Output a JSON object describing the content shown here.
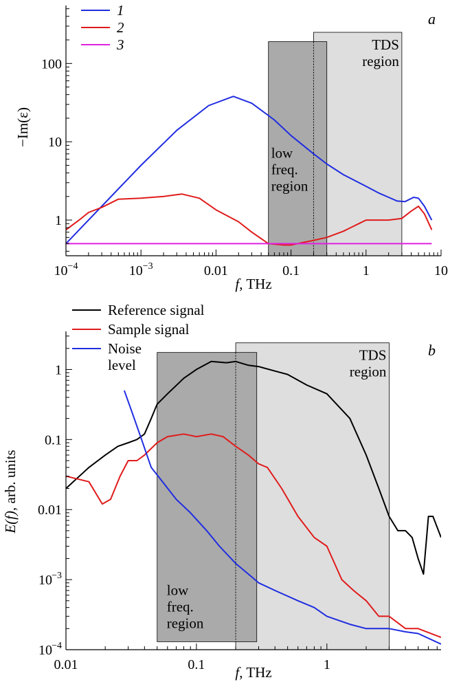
{
  "chart_data": [
    {
      "panel": "a",
      "type": "line",
      "xscale": "log",
      "yscale": "log",
      "xlim": [
        0.0001,
        10
      ],
      "ylim": [
        0.35,
        550
      ],
      "xlabel_italic": "f",
      "xlabel_rest": ", THz",
      "ylabel": "−Im(ε)",
      "panel_label": "a",
      "x_ticks": [
        {
          "v": 0.0001,
          "b": "10",
          "e": "−4"
        },
        {
          "v": 0.001,
          "b": "10",
          "e": "−3"
        },
        {
          "v": 0.01,
          "b": "0.01",
          "e": ""
        },
        {
          "v": 0.1,
          "b": "0.1",
          "e": ""
        },
        {
          "v": 1,
          "b": "1",
          "e": ""
        },
        {
          "v": 10,
          "b": "10",
          "e": ""
        }
      ],
      "y_ticks": [
        {
          "v": 1,
          "b": "1",
          "e": ""
        },
        {
          "v": 10,
          "b": "10",
          "e": ""
        },
        {
          "v": 100,
          "b": "100",
          "e": ""
        }
      ],
      "regions": [
        {
          "name": "TDS region",
          "label": [
            "TDS",
            "region"
          ],
          "x": [
            0.2,
            3
          ],
          "y": [
            0.35,
            250
          ],
          "fill": "#dedede",
          "label_pos": "top-right"
        },
        {
          "name": "low freq. region",
          "label": [
            "low",
            "freq.",
            "region"
          ],
          "x": [
            0.05,
            0.3
          ],
          "y": [
            0.35,
            190
          ],
          "fill": "#aaaaaa",
          "label_pos": "middle"
        }
      ],
      "divider_x": 0.2,
      "legend": {
        "placement": "top-left",
        "italic": true
      },
      "series": [
        {
          "name": "1",
          "color": "#1f2de0",
          "x": [
            0.0001,
            0.0003,
            0.001,
            0.003,
            0.008,
            0.017,
            0.03,
            0.06,
            0.1,
            0.2,
            0.3,
            0.5,
            1,
            1.5,
            2,
            2.6,
            3.3,
            4.3,
            5,
            6,
            7.5
          ],
          "y": [
            0.5,
            1.5,
            5,
            14,
            29,
            38,
            31,
            19,
            12,
            7,
            5.2,
            3.8,
            2.7,
            2.2,
            1.95,
            1.75,
            1.72,
            1.95,
            1.9,
            1.5,
            1.0
          ]
        },
        {
          "name": "2",
          "color": "#e01b1b",
          "x": [
            0.0001,
            0.00015,
            0.0002,
            0.0003,
            0.0005,
            0.001,
            0.002,
            0.0035,
            0.006,
            0.01,
            0.02,
            0.03,
            0.05,
            0.08,
            0.1,
            0.15,
            0.2,
            0.3,
            0.5,
            0.8,
            1,
            2,
            3,
            4,
            5,
            6,
            7.5
          ],
          "y": [
            0.75,
            1.0,
            1.25,
            1.45,
            1.85,
            1.9,
            2.0,
            2.15,
            1.9,
            1.35,
            0.95,
            0.7,
            0.5,
            0.48,
            0.48,
            0.52,
            0.55,
            0.6,
            0.72,
            0.9,
            1.0,
            1.0,
            1.05,
            1.3,
            1.5,
            1.2,
            0.75
          ]
        },
        {
          "name": "3",
          "color": "#e020e0",
          "x": [
            0.0001,
            7.5
          ],
          "y": [
            0.5,
            0.5
          ]
        }
      ]
    },
    {
      "panel": "b",
      "type": "line",
      "xscale": "log",
      "yscale": "log",
      "xlim": [
        0.01,
        7.5
      ],
      "ylim": [
        0.0001,
        3.5
      ],
      "xlabel_italic": "f",
      "xlabel_rest": ", THz",
      "ylabel_italic": "E(f)",
      "ylabel_rest": ", arb. units",
      "panel_label": "b",
      "x_ticks": [
        {
          "v": 0.01,
          "b": "0.01",
          "e": ""
        },
        {
          "v": 0.1,
          "b": "0.1",
          "e": ""
        },
        {
          "v": 1,
          "b": "1",
          "e": ""
        }
      ],
      "y_ticks": [
        {
          "v": 0.0001,
          "b": "10",
          "e": "−4"
        },
        {
          "v": 0.001,
          "b": "10",
          "e": "−3"
        },
        {
          "v": 0.01,
          "b": "0.01",
          "e": ""
        },
        {
          "v": 0.1,
          "b": "0.1",
          "e": ""
        },
        {
          "v": 1,
          "b": "1",
          "e": ""
        }
      ],
      "regions": [
        {
          "name": "TDS region",
          "label": [
            "TDS",
            "region"
          ],
          "x": [
            0.2,
            3
          ],
          "y": [
            0.0001,
            2.4
          ],
          "fill": "#dedede",
          "label_pos": "top-right"
        },
        {
          "name": "low freq. region",
          "label": [
            "low",
            "freq.",
            "region"
          ],
          "x": [
            0.05,
            0.29
          ],
          "y": [
            0.00013,
            1.75
          ],
          "fill": "#aaaaaa",
          "label_pos": "bottom"
        }
      ],
      "divider_x": 0.2,
      "legend": {
        "placement": "top-left",
        "italic": false
      },
      "series": [
        {
          "name": "Reference signal",
          "color": "#000000",
          "x": [
            0.01,
            0.015,
            0.02,
            0.025,
            0.03,
            0.035,
            0.04,
            0.045,
            0.05,
            0.06,
            0.08,
            0.1,
            0.13,
            0.17,
            0.2,
            0.25,
            0.3,
            0.4,
            0.5,
            0.7,
            1,
            1.5,
            2,
            2.5,
            3,
            3.5,
            4,
            4.5,
            5,
            5.5,
            6,
            6.5,
            7.5
          ],
          "y": [
            0.02,
            0.04,
            0.06,
            0.08,
            0.09,
            0.1,
            0.12,
            0.2,
            0.32,
            0.45,
            0.75,
            1.0,
            1.3,
            1.25,
            1.3,
            1.15,
            1.1,
            0.95,
            0.85,
            0.6,
            0.45,
            0.2,
            0.06,
            0.02,
            0.008,
            0.005,
            0.005,
            0.004,
            0.002,
            0.0012,
            0.008,
            0.008,
            0.004
          ]
        },
        {
          "name": "Sample signal",
          "color": "#e01b1b",
          "x": [
            0.01,
            0.015,
            0.019,
            0.022,
            0.026,
            0.03,
            0.035,
            0.04,
            0.05,
            0.06,
            0.08,
            0.1,
            0.13,
            0.16,
            0.2,
            0.25,
            0.3,
            0.35,
            0.45,
            0.6,
            0.8,
            1,
            1.3,
            1.6,
            2,
            2.5,
            3,
            4,
            5,
            7.5
          ],
          "y": [
            0.03,
            0.025,
            0.012,
            0.014,
            0.03,
            0.05,
            0.05,
            0.06,
            0.09,
            0.11,
            0.12,
            0.11,
            0.12,
            0.11,
            0.08,
            0.06,
            0.045,
            0.04,
            0.02,
            0.008,
            0.004,
            0.003,
            0.001,
            0.0007,
            0.0005,
            0.0003,
            0.0003,
            0.0002,
            0.0002,
            0.00015
          ]
        },
        {
          "name": "Noise level",
          "color": "#1f2de0",
          "x": [
            0.028,
            0.032,
            0.038,
            0.045,
            0.055,
            0.07,
            0.09,
            0.12,
            0.15,
            0.2,
            0.25,
            0.3,
            0.4,
            0.6,
            0.8,
            1,
            1.5,
            2,
            3,
            4,
            5,
            7.5
          ],
          "y": [
            0.5,
            0.25,
            0.1,
            0.04,
            0.025,
            0.014,
            0.009,
            0.005,
            0.003,
            0.0017,
            0.0012,
            0.0009,
            0.0007,
            0.0005,
            0.0004,
            0.0003,
            0.00023,
            0.0002,
            0.0002,
            0.00018,
            0.00017,
            0.00012
          ]
        }
      ]
    }
  ]
}
